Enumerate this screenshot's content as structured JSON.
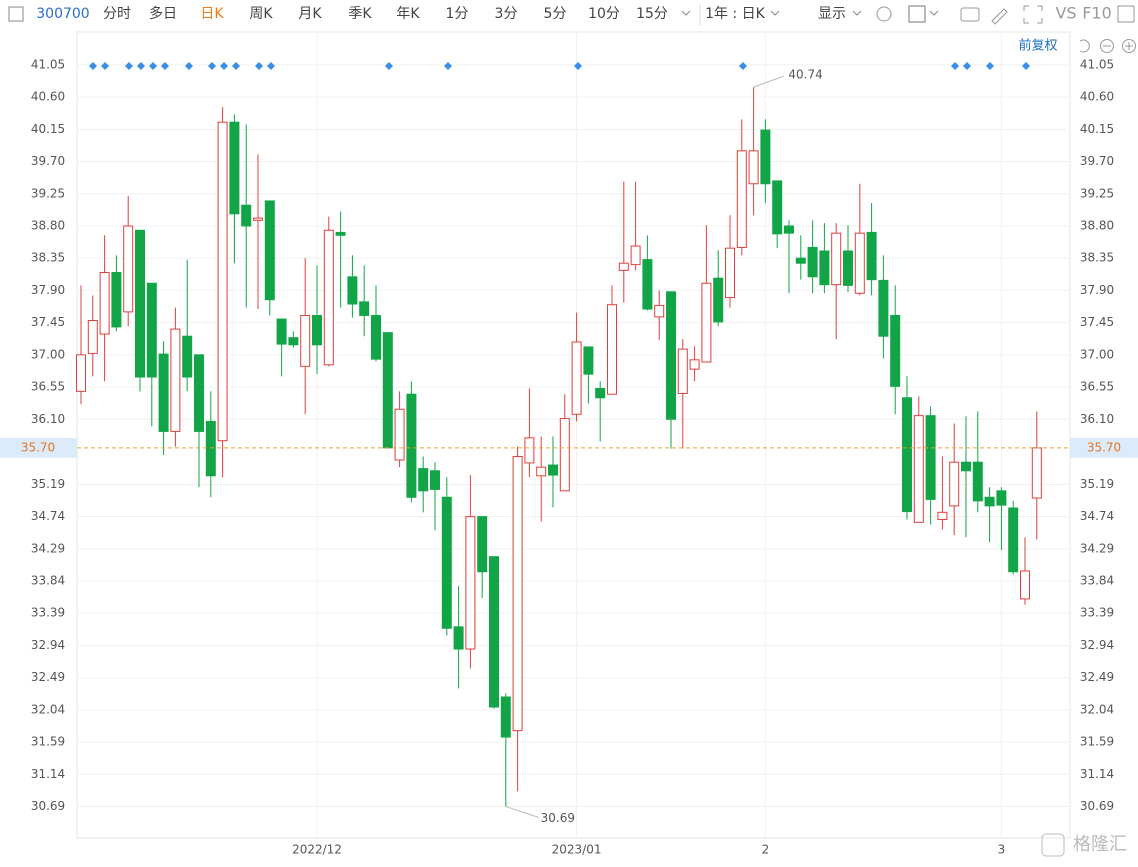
{
  "toolbar": {
    "code": "300700",
    "items": [
      "分时",
      "多日",
      "日K",
      "周K",
      "月K",
      "季K",
      "年K",
      "1分",
      "3分",
      "5分",
      "10分",
      "15分"
    ],
    "range": "1年 : 日K",
    "display": "显示",
    "vs": "VS",
    "f10": "F10",
    "adjust": "前复权"
  },
  "watermark": "格隆汇",
  "chart_data": {
    "type": "candlestick",
    "categories": [
      null,
      null,
      null,
      null,
      null,
      null,
      null,
      null,
      null,
      null,
      null,
      null,
      null,
      null,
      null,
      null,
      null,
      null,
      null,
      null,
      "2022/12",
      null,
      null,
      null,
      null,
      null,
      null,
      null,
      null,
      null,
      null,
      null,
      null,
      null,
      null,
      null,
      null,
      null,
      null,
      null,
      null,
      null,
      "2023/01",
      null,
      null,
      null,
      null,
      null,
      null,
      null,
      null,
      null,
      null,
      null,
      null,
      null,
      null,
      null,
      "2",
      null,
      null,
      null,
      null,
      null,
      null,
      null,
      null,
      null,
      null,
      null,
      null,
      null,
      null,
      null,
      null,
      null,
      null,
      null,
      "3",
      null,
      null,
      null
    ],
    "open": [
      36.49,
      37.02,
      37.29,
      38.15,
      37.6,
      38.74,
      38.0,
      37.01,
      35.93,
      37.26,
      37.0,
      36.07,
      35.8,
      40.25,
      39.09,
      38.88,
      39.15,
      37.5,
      37.24,
      36.84,
      37.55,
      36.86,
      38.71,
      38.09,
      37.74,
      37.55,
      37.31,
      35.53,
      36.45,
      35.41,
      35.38,
      35.01,
      33.2,
      32.89,
      34.74,
      34.18,
      32.22,
      31.75,
      35.49,
      35.31,
      35.46,
      35.1,
      36.17,
      37.11,
      36.53,
      36.45,
      38.18,
      38.26,
      38.33,
      37.53,
      37.88,
      36.46,
      36.8,
      36.9,
      38.07,
      37.8,
      38.5,
      39.39,
      40.14,
      39.43,
      38.8,
      38.35,
      38.5,
      38.45,
      37.98,
      38.45,
      37.86,
      38.71,
      38.04,
      37.55,
      36.4,
      34.66,
      36.15,
      34.7,
      34.89,
      35.5,
      35.5,
      35.01,
      35.1,
      34.86,
      33.59,
      35.0
    ],
    "high": [
      37.97,
      37.83,
      38.67,
      38.39,
      39.22,
      38.74,
      38.0,
      37.19,
      37.66,
      38.33,
      37.0,
      36.49,
      40.46,
      40.36,
      40.22,
      39.8,
      39.15,
      37.5,
      37.33,
      38.35,
      38.25,
      38.93,
      39.0,
      38.39,
      38.25,
      37.97,
      37.31,
      36.49,
      36.63,
      35.58,
      35.5,
      35.29,
      33.77,
      35.32,
      34.74,
      34.18,
      32.27,
      35.72,
      36.53,
      35.86,
      35.86,
      36.45,
      37.59,
      37.11,
      36.63,
      37.97,
      39.42,
      39.42,
      38.67,
      37.9,
      37.88,
      37.22,
      37.12,
      38.81,
      38.46,
      38.95,
      40.29,
      40.74,
      40.29,
      39.43,
      38.88,
      38.67,
      38.88,
      38.84,
      38.84,
      38.81,
      39.39,
      39.12,
      38.39,
      37.97,
      36.7,
      36.42,
      36.28,
      35.58,
      36.04,
      36.14,
      36.21,
      35.15,
      35.15,
      34.96,
      34.45,
      36.21
    ],
    "low": [
      36.31,
      36.7,
      36.63,
      37.33,
      37.4,
      36.49,
      36.0,
      35.6,
      35.72,
      36.49,
      35.15,
      35.01,
      35.29,
      38.28,
      37.66,
      37.64,
      37.55,
      36.7,
      37.1,
      36.17,
      36.73,
      36.84,
      37.66,
      37.52,
      37.26,
      36.91,
      35.69,
      35.43,
      34.94,
      34.8,
      34.55,
      33.08,
      32.34,
      32.62,
      33.6,
      32.06,
      30.69,
      30.9,
      35.29,
      34.67,
      34.87,
      35.1,
      36.07,
      36.32,
      35.79,
      36.45,
      37.73,
      38.18,
      37.62,
      37.21,
      35.69,
      35.69,
      36.63,
      36.9,
      37.4,
      37.66,
      38.39,
      38.95,
      39.12,
      38.49,
      37.86,
      38.05,
      37.86,
      37.86,
      37.22,
      37.88,
      37.83,
      37.83,
      36.95,
      36.17,
      34.7,
      34.66,
      34.63,
      34.56,
      34.48,
      34.45,
      34.8,
      34.38,
      34.27,
      33.93,
      33.51,
      34.42
    ],
    "close": [
      37.0,
      37.48,
      38.15,
      37.39,
      38.8,
      36.69,
      36.69,
      35.93,
      37.36,
      36.69,
      35.93,
      35.31,
      40.25,
      38.97,
      38.8,
      38.91,
      37.77,
      37.15,
      37.14,
      37.55,
      37.14,
      38.74,
      38.67,
      37.71,
      37.55,
      36.94,
      35.7,
      36.24,
      35.01,
      35.1,
      35.12,
      33.18,
      32.89,
      34.74,
      33.97,
      32.08,
      31.66,
      35.58,
      35.84,
      35.43,
      35.32,
      36.11,
      37.18,
      36.73,
      36.4,
      37.7,
      38.28,
      38.52,
      37.64,
      37.69,
      36.1,
      37.08,
      36.93,
      38.0,
      37.46,
      38.49,
      39.85,
      39.85,
      39.39,
      38.69,
      38.7,
      38.28,
      38.09,
      37.98,
      38.7,
      37.97,
      38.7,
      38.05,
      37.26,
      36.56,
      34.81,
      36.15,
      34.98,
      34.8,
      35.5,
      35.38,
      34.96,
      34.89,
      34.9,
      33.97,
      33.98,
      35.7
    ],
    "up_color": "#e0403c",
    "down_color": "#12a548",
    "ylim": [
      30.25,
      41.51
    ],
    "yticks": [
      41.05,
      {
        "value": 40.6,
        "label": "40.60"
      },
      40.15,
      {
        "value": 39.7,
        "label": "39.70"
      },
      39.25,
      {
        "value": 38.8,
        "label": "38.80"
      },
      38.35,
      {
        "value": 37.9,
        "label": "37.90"
      },
      37.45,
      {
        "value": 37,
        "label": "37.00"
      },
      36.55,
      {
        "value": 36.1,
        "label": "36.10"
      },
      35.19,
      34.74,
      34.29,
      33.84,
      33.39,
      32.94,
      32.49,
      32.04,
      31.59,
      31.14,
      30.69
    ],
    "grid": true,
    "last_price": {
      "value": 35.7,
      "label": "35.70"
    },
    "high_label": 40.74,
    "low_label": 30.69
  }
}
